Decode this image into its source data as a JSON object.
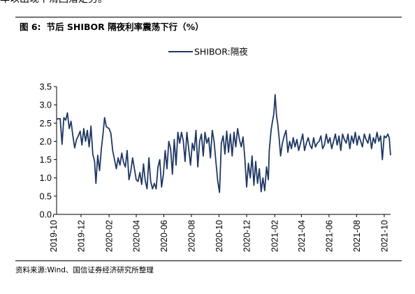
{
  "previous_text": "年以出现下滑回落走势。",
  "figure": {
    "number": "图 6:",
    "title": "节后 SHIBOR 隔夜利率震荡下行（%）",
    "source": "资料来源:Wind、国信证券经济研究所整理"
  },
  "colors": {
    "series": "#1f3864",
    "axis": "#000000",
    "rule": "#000000"
  },
  "chart_data": {
    "type": "line",
    "title": "节后 SHIBOR 隔夜利率震荡下行（%）",
    "xlabel": "",
    "ylabel": "",
    "ylim": [
      0,
      3.5
    ],
    "yticks": [
      "0.0",
      "0.5",
      "1.0",
      "1.5",
      "2.0",
      "2.5",
      "3.0",
      "3.5"
    ],
    "xticks": [
      "2019-10",
      "2019-12",
      "2020-02",
      "2020-04",
      "2020-06",
      "2020-08",
      "2020-10",
      "2020-12",
      "2021-02",
      "2021-04",
      "2021-06",
      "2021-08",
      "2021-10"
    ],
    "x_range": [
      "2019-10-08",
      "2021-10-15"
    ],
    "grid": false,
    "legend_position": "top-center",
    "series": [
      {
        "name": "SHIBOR:隔夜",
        "points": [
          [
            "2019-10-08",
            2.6
          ],
          [
            "2019-10-11",
            2.62
          ],
          [
            "2019-10-16",
            2.62
          ],
          [
            "2019-10-20",
            1.92
          ],
          [
            "2019-10-24",
            2.65
          ],
          [
            "2019-10-28",
            2.58
          ],
          [
            "2019-11-01",
            2.78
          ],
          [
            "2019-11-05",
            2.35
          ],
          [
            "2019-11-09",
            2.55
          ],
          [
            "2019-11-13",
            2.15
          ],
          [
            "2019-11-17",
            1.82
          ],
          [
            "2019-11-21",
            2.05
          ],
          [
            "2019-11-25",
            2.15
          ],
          [
            "2019-11-29",
            2.28
          ],
          [
            "2019-12-03",
            1.9
          ],
          [
            "2019-12-07",
            2.35
          ],
          [
            "2019-12-11",
            2.0
          ],
          [
            "2019-12-15",
            2.3
          ],
          [
            "2019-12-19",
            1.85
          ],
          [
            "2019-12-23",
            2.42
          ],
          [
            "2019-12-27",
            1.65
          ],
          [
            "2019-12-31",
            1.45
          ],
          [
            "2020-01-03",
            0.85
          ],
          [
            "2020-01-07",
            1.62
          ],
          [
            "2020-01-11",
            1.2
          ],
          [
            "2020-01-15",
            1.8
          ],
          [
            "2020-01-19",
            2.25
          ],
          [
            "2020-01-22",
            2.65
          ],
          [
            "2020-01-26",
            2.4
          ],
          [
            "2020-02-01",
            2.35
          ],
          [
            "2020-02-05",
            2.22
          ],
          [
            "2020-02-09",
            1.75
          ],
          [
            "2020-02-13",
            1.5
          ],
          [
            "2020-02-17",
            1.25
          ],
          [
            "2020-02-21",
            1.55
          ],
          [
            "2020-02-25",
            1.35
          ],
          [
            "2020-02-29",
            1.68
          ],
          [
            "2020-03-04",
            1.42
          ],
          [
            "2020-03-08",
            1.3
          ],
          [
            "2020-03-12",
            1.75
          ],
          [
            "2020-03-16",
            0.95
          ],
          [
            "2020-03-20",
            1.18
          ],
          [
            "2020-03-24",
            1.55
          ],
          [
            "2020-03-28",
            1.25
          ],
          [
            "2020-04-01",
            0.95
          ],
          [
            "2020-04-05",
            0.9
          ],
          [
            "2020-04-09",
            1.15
          ],
          [
            "2020-04-13",
            0.82
          ],
          [
            "2020-04-17",
            1.38
          ],
          [
            "2020-04-21",
            0.92
          ],
          [
            "2020-04-25",
            0.7
          ],
          [
            "2020-04-29",
            1.55
          ],
          [
            "2020-05-03",
            0.9
          ],
          [
            "2020-05-07",
            0.7
          ],
          [
            "2020-05-11",
            0.85
          ],
          [
            "2020-05-15",
            0.7
          ],
          [
            "2020-05-19",
            1.3
          ],
          [
            "2020-05-23",
            1.5
          ],
          [
            "2020-05-27",
            0.75
          ],
          [
            "2020-05-31",
            1.1
          ],
          [
            "2020-06-04",
            1.75
          ],
          [
            "2020-06-08",
            1.25
          ],
          [
            "2020-06-12",
            2.0
          ],
          [
            "2020-06-16",
            1.8
          ],
          [
            "2020-06-20",
            1.1
          ],
          [
            "2020-06-24",
            2.05
          ],
          [
            "2020-06-28",
            1.35
          ],
          [
            "2020-07-02",
            2.25
          ],
          [
            "2020-07-06",
            1.95
          ],
          [
            "2020-07-10",
            2.25
          ],
          [
            "2020-07-14",
            2.0
          ],
          [
            "2020-07-18",
            1.45
          ],
          [
            "2020-07-22",
            2.25
          ],
          [
            "2020-07-26",
            1.8
          ],
          [
            "2020-07-30",
            1.35
          ],
          [
            "2020-08-03",
            1.95
          ],
          [
            "2020-08-07",
            1.75
          ],
          [
            "2020-08-11",
            2.3
          ],
          [
            "2020-08-15",
            1.3
          ],
          [
            "2020-08-19",
            2.0
          ],
          [
            "2020-08-23",
            2.2
          ],
          [
            "2020-08-27",
            1.6
          ],
          [
            "2020-08-31",
            2.25
          ],
          [
            "2020-09-04",
            1.95
          ],
          [
            "2020-09-08",
            2.1
          ],
          [
            "2020-09-12",
            1.55
          ],
          [
            "2020-09-16",
            2.3
          ],
          [
            "2020-09-20",
            2.0
          ],
          [
            "2020-09-24",
            1.45
          ],
          [
            "2020-09-28",
            0.92
          ],
          [
            "2020-10-02",
            0.6
          ],
          [
            "2020-10-06",
            1.95
          ],
          [
            "2020-10-10",
            2.15
          ],
          [
            "2020-10-14",
            1.65
          ],
          [
            "2020-10-18",
            2.28
          ],
          [
            "2020-10-22",
            1.7
          ],
          [
            "2020-10-26",
            2.2
          ],
          [
            "2020-10-30",
            1.6
          ],
          [
            "2020-11-03",
            2.25
          ],
          [
            "2020-11-07",
            1.85
          ],
          [
            "2020-11-11",
            2.35
          ],
          [
            "2020-11-15",
            2.05
          ],
          [
            "2020-11-19",
            1.85
          ],
          [
            "2020-11-23",
            2.12
          ],
          [
            "2020-11-27",
            1.55
          ],
          [
            "2020-12-01",
            0.75
          ],
          [
            "2020-12-05",
            1.4
          ],
          [
            "2020-12-09",
            1.0
          ],
          [
            "2020-12-13",
            1.6
          ],
          [
            "2020-12-17",
            0.8
          ],
          [
            "2020-12-21",
            1.45
          ],
          [
            "2020-12-25",
            0.85
          ],
          [
            "2020-12-29",
            1.25
          ],
          [
            "2021-01-02",
            0.62
          ],
          [
            "2021-01-06",
            1.0
          ],
          [
            "2021-01-10",
            0.65
          ],
          [
            "2021-01-14",
            1.3
          ],
          [
            "2021-01-18",
            0.95
          ],
          [
            "2021-01-20",
            1.75
          ],
          [
            "2021-01-24",
            2.3
          ],
          [
            "2021-01-27",
            2.55
          ],
          [
            "2021-01-30",
            2.75
          ],
          [
            "2021-02-02",
            3.28
          ],
          [
            "2021-02-05",
            2.7
          ],
          [
            "2021-02-08",
            2.45
          ],
          [
            "2021-02-11",
            2.05
          ],
          [
            "2021-02-14",
            1.6
          ],
          [
            "2021-02-18",
            1.95
          ],
          [
            "2021-02-22",
            2.15
          ],
          [
            "2021-02-26",
            2.3
          ],
          [
            "2021-03-02",
            1.7
          ],
          [
            "2021-03-06",
            2.0
          ],
          [
            "2021-03-10",
            1.8
          ],
          [
            "2021-03-14",
            2.1
          ],
          [
            "2021-03-18",
            1.85
          ],
          [
            "2021-03-22",
            2.05
          ],
          [
            "2021-03-26",
            1.75
          ],
          [
            "2021-03-31",
            2.0
          ],
          [
            "2021-04-04",
            2.2
          ],
          [
            "2021-04-08",
            1.75
          ],
          [
            "2021-04-12",
            1.95
          ],
          [
            "2021-04-16",
            2.1
          ],
          [
            "2021-04-20",
            1.9
          ],
          [
            "2021-04-24",
            1.8
          ],
          [
            "2021-04-28",
            2.1
          ],
          [
            "2021-05-02",
            1.85
          ],
          [
            "2021-05-06",
            1.95
          ],
          [
            "2021-05-10",
            2.0
          ],
          [
            "2021-05-14",
            2.15
          ],
          [
            "2021-05-18",
            1.8
          ],
          [
            "2021-05-22",
            1.9
          ],
          [
            "2021-05-26",
            2.2
          ],
          [
            "2021-05-30",
            1.95
          ],
          [
            "2021-06-03",
            2.1
          ],
          [
            "2021-06-07",
            1.8
          ],
          [
            "2021-06-11",
            2.0
          ],
          [
            "2021-06-15",
            2.2
          ],
          [
            "2021-06-19",
            1.9
          ],
          [
            "2021-06-23",
            2.15
          ],
          [
            "2021-06-27",
            1.75
          ],
          [
            "2021-07-01",
            2.2
          ],
          [
            "2021-07-05",
            2.05
          ],
          [
            "2021-07-09",
            1.95
          ],
          [
            "2021-07-13",
            2.2
          ],
          [
            "2021-07-17",
            1.8
          ],
          [
            "2021-07-21",
            2.15
          ],
          [
            "2021-07-25",
            1.95
          ],
          [
            "2021-07-29",
            2.25
          ],
          [
            "2021-08-02",
            1.9
          ],
          [
            "2021-08-06",
            2.15
          ],
          [
            "2021-08-10",
            2.0
          ],
          [
            "2021-08-14",
            1.85
          ],
          [
            "2021-08-18",
            2.2
          ],
          [
            "2021-08-22",
            2.05
          ],
          [
            "2021-08-26",
            1.95
          ],
          [
            "2021-08-30",
            2.2
          ],
          [
            "2021-09-03",
            1.8
          ],
          [
            "2021-09-07",
            2.1
          ],
          [
            "2021-09-11",
            1.95
          ],
          [
            "2021-09-15",
            2.25
          ],
          [
            "2021-09-19",
            2.0
          ],
          [
            "2021-09-23",
            2.15
          ],
          [
            "2021-09-27",
            1.5
          ],
          [
            "2021-10-01",
            2.15
          ],
          [
            "2021-10-05",
            2.1
          ],
          [
            "2021-10-09",
            2.2
          ],
          [
            "2021-10-12",
            2.1
          ],
          [
            "2021-10-15",
            1.62
          ]
        ]
      }
    ]
  }
}
